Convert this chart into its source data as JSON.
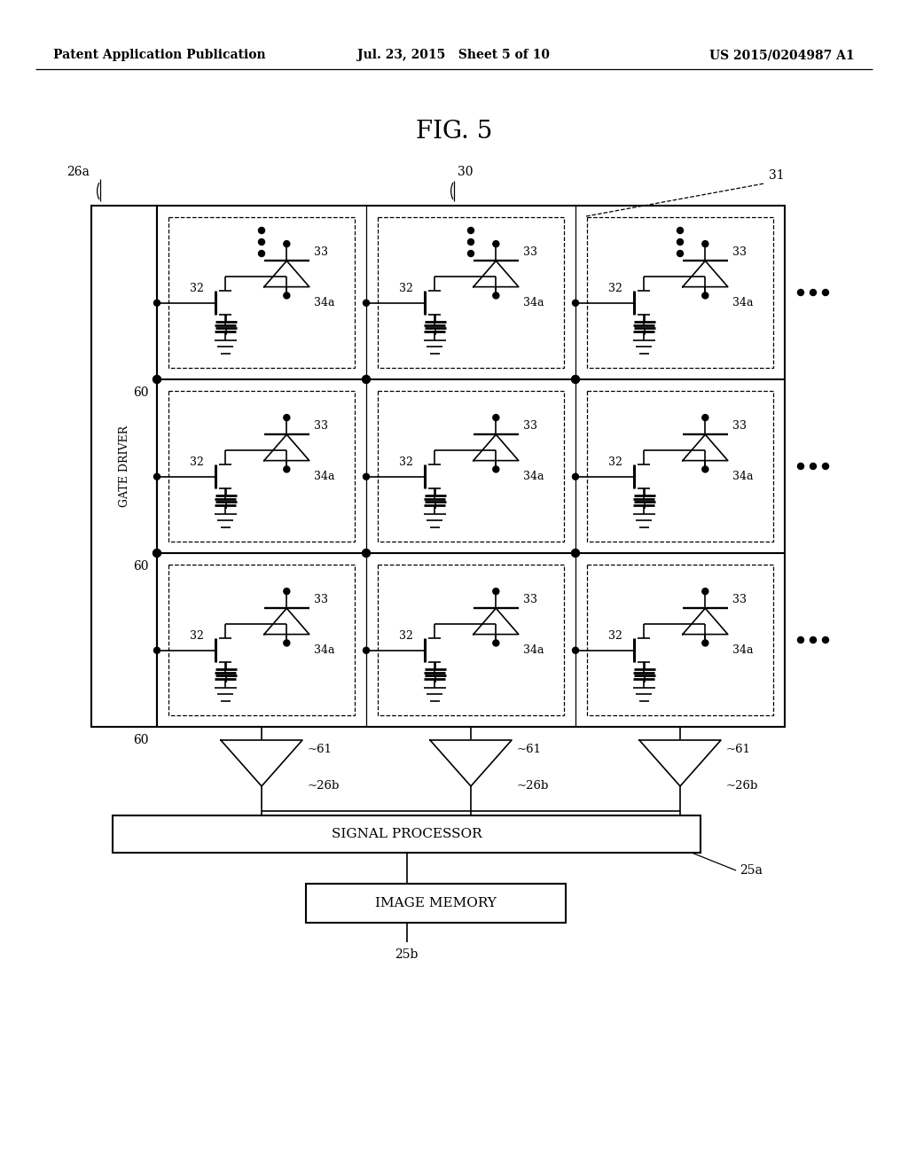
{
  "bg_color": "#ffffff",
  "line_color": "#000000",
  "header_left": "Patent Application Publication",
  "header_mid": "Jul. 23, 2015   Sheet 5 of 10",
  "header_right": "US 2015/0204987 A1",
  "fig_title": "FIG. 5",
  "gate_driver_label": "GATE DRIVER",
  "sp_label": "SIGNAL PROCESSOR",
  "im_label": "IMAGE MEMORY",
  "lbl_26a": "26a",
  "lbl_30": "30",
  "lbl_31": "31",
  "lbl_60": "60",
  "lbl_61": "~61",
  "lbl_26b": "~26b",
  "lbl_25a": "25a",
  "lbl_25b": "25b",
  "lbl_32": "32",
  "lbl_33": "33",
  "lbl_34a": "34a"
}
